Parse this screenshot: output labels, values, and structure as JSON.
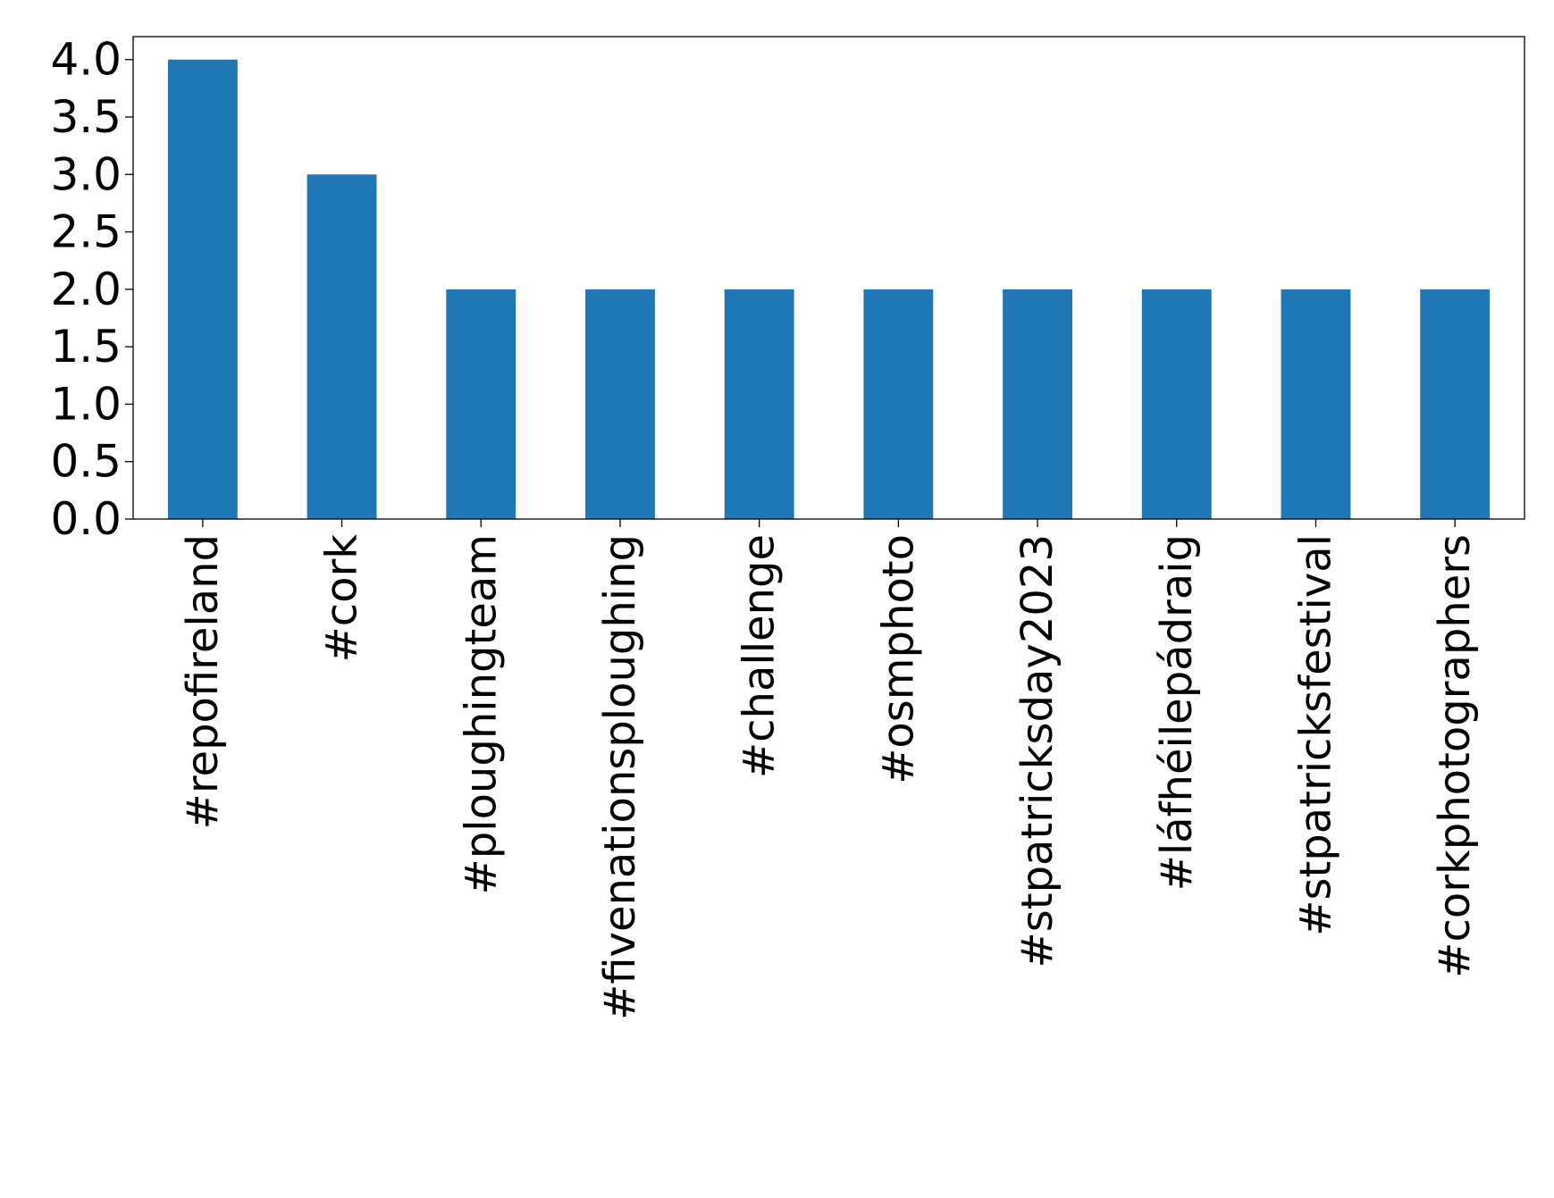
{
  "chart_data": {
    "type": "bar",
    "title": "",
    "xlabel": "",
    "ylabel": "",
    "categories": [
      "#repofireland",
      "#cork",
      "#ploughingteam",
      "#fivenationsploughing",
      "#challenge",
      "#osmphoto",
      "#stpatricksday2023",
      "#láfhéilepádraig",
      "#stpatricksfestival",
      "#corkphotographers"
    ],
    "values": [
      4,
      3,
      2,
      2,
      2,
      2,
      2,
      2,
      2,
      2
    ],
    "ylim": [
      0,
      4.2
    ],
    "yticks": [
      "0.0",
      "0.5",
      "1.0",
      "1.5",
      "2.0",
      "2.5",
      "3.0",
      "3.5",
      "4.0"
    ],
    "grid": false,
    "legend": "none",
    "bar_color": "#1f77b4"
  }
}
